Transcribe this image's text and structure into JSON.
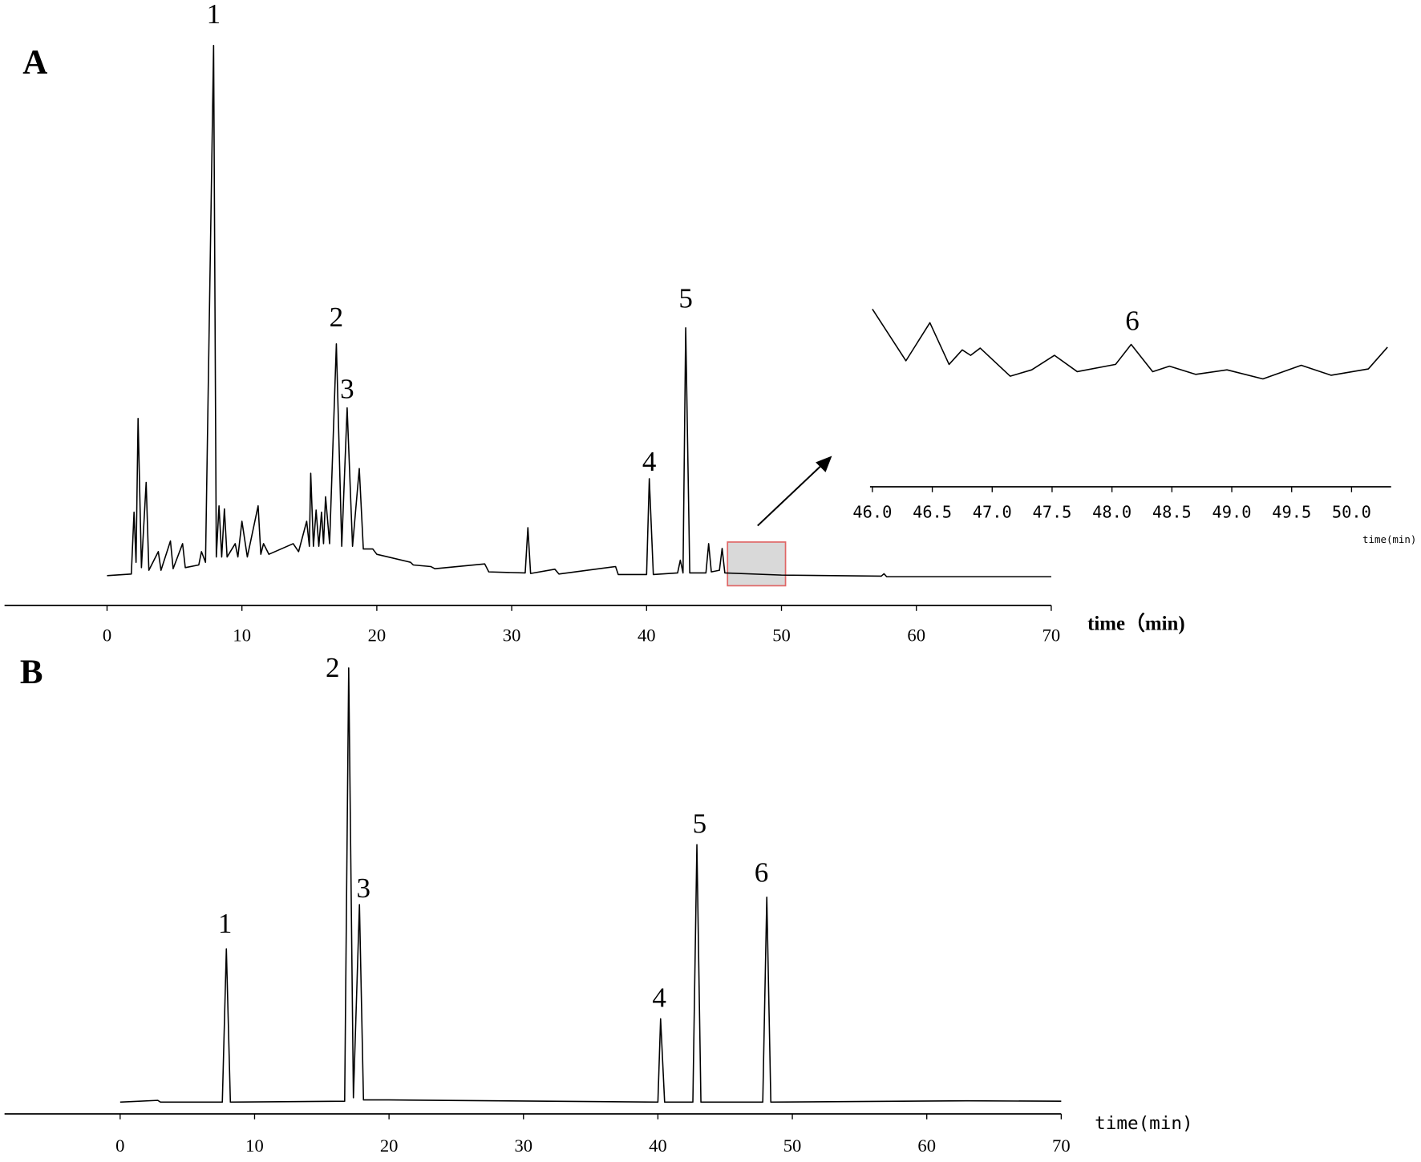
{
  "chart_data": [
    {
      "type": "line",
      "panel_label": "A",
      "xlabel": "time（min)",
      "xlim": [
        -7.6,
        70
      ],
      "ylim": [
        0,
        108
      ],
      "xticks": [
        0,
        10,
        20,
        30,
        40,
        50,
        60,
        70
      ],
      "series": [
        {
          "color": "#000000",
          "x": [
            0,
            1.8,
            2.0,
            2.15,
            2.3,
            2.55,
            2.9,
            3.1,
            3.8,
            4.0,
            4.7,
            4.9,
            5.6,
            5.8,
            6.8,
            7.0,
            7.3,
            7.9,
            8.1,
            8.3,
            8.5,
            8.7,
            8.9,
            9.5,
            9.7,
            10.0,
            10.4,
            11.2,
            11.4,
            11.6,
            12,
            13.8,
            14.2,
            14.8,
            15,
            15.1,
            15.3,
            15.5,
            15.7,
            15.9,
            16.05,
            16.2,
            16.5,
            17.0,
            17.4,
            17.8,
            18.2,
            18.7,
            19.0,
            19.7,
            20,
            22.5,
            22.7,
            24,
            24.3,
            28,
            28.3,
            31.0,
            31.2,
            31.4,
            33.2,
            33.5,
            37.7,
            37.9,
            40.0,
            40.2,
            40.5,
            42.3,
            42.5,
            42.7,
            42.9,
            43.2,
            44.4,
            44.6,
            44.8,
            45.4,
            45.6,
            45.8,
            50,
            57.4,
            57.6,
            57.8,
            70
          ],
          "values": [
            0.5,
            0.8,
            12.4,
            3,
            30,
            2,
            18,
            1.5,
            5,
            1.5,
            7,
            1.8,
            6.5,
            2,
            2.5,
            5,
            3,
            100,
            4,
            13.6,
            4,
            13,
            4,
            6.5,
            4,
            10.7,
            4,
            13.6,
            4.5,
            6.5,
            4.5,
            6.5,
            5,
            10.7,
            6,
            19.7,
            6,
            12.8,
            6,
            12.4,
            6.5,
            15.3,
            6.5,
            44,
            6,
            32,
            6,
            20.6,
            5.5,
            5.5,
            4.5,
            3,
            2.5,
            2.2,
            1.8,
            2.7,
            1.2,
            1,
            9.5,
            0.9,
            1.7,
            0.8,
            2.2,
            0.7,
            0.7,
            18.7,
            0.7,
            1,
            3.4,
            1,
            47,
            1,
            1,
            6.5,
            1.2,
            1.5,
            5.6,
            1,
            0.6,
            0.4,
            0.85,
            0.3,
            0.3
          ]
        }
      ],
      "annotations": [
        {
          "text": "1",
          "x": 7.9,
          "y": 105.4
        },
        {
          "text": "2",
          "x": 17.0,
          "y": 48.5
        },
        {
          "text": "3",
          "x": 17.8,
          "y": 35
        },
        {
          "text": "4",
          "x": 40.2,
          "y": 21.4
        },
        {
          "text": "5",
          "x": 42.9,
          "y": 52
        }
      ],
      "zoom_box": {
        "xlim": [
          46,
          50.3
        ],
        "ylim": [
          -1.4,
          6.8
        ],
        "color": "#e06666",
        "fill": "#d9d9d9"
      }
    },
    {
      "type": "line",
      "xlabel": "time(min)",
      "xlim": [
        45.98,
        50.33
      ],
      "ylim": [
        0,
        100
      ],
      "xticks": [
        {
          "value": 46,
          "label": "46.0"
        },
        {
          "value": 46.5,
          "label": "46.5"
        },
        {
          "value": 47,
          "label": "47.0"
        },
        {
          "value": 47.5,
          "label": "47.5"
        },
        {
          "value": 48,
          "label": "48.0"
        },
        {
          "value": 48.5,
          "label": "48.5"
        },
        {
          "value": 49,
          "label": "49.0"
        },
        {
          "value": 49.5,
          "label": "49.5"
        },
        {
          "value": 50,
          "label": "50.0"
        }
      ],
      "series": [
        {
          "color": "#000000",
          "x": [
            46.0,
            46.28,
            46.48,
            46.64,
            46.75,
            46.82,
            46.9,
            47.15,
            47.33,
            47.52,
            47.71,
            48.03,
            48.16,
            48.34,
            48.48,
            48.7,
            48.96,
            49.26,
            49.58,
            49.83,
            50.14,
            50.3
          ],
          "values": [
            89,
            32,
            74,
            28,
            44,
            38,
            46,
            15,
            22,
            38,
            20,
            28,
            50,
            20,
            26,
            17,
            22,
            12,
            27,
            16,
            23,
            47
          ]
        }
      ],
      "annotations": [
        {
          "text": "6",
          "x": 48.17,
          "y": 73
        }
      ]
    },
    {
      "type": "line",
      "panel_label": "B",
      "xlabel": "time(min)",
      "xlim": [
        -8.6,
        70
      ],
      "ylim": [
        0,
        105
      ],
      "xticks": [
        0,
        10,
        20,
        30,
        40,
        50,
        60,
        70
      ],
      "series": [
        {
          "color": "#000000",
          "x": [
            0,
            2.8,
            3,
            7.6,
            7.9,
            8.2,
            16.7,
            17.0,
            17.35,
            17.8,
            18.1,
            20,
            40.0,
            40.2,
            40.5,
            42.6,
            42.9,
            43.2,
            47.8,
            48.1,
            48.4,
            63,
            70
          ],
          "values": [
            0,
            0.4,
            0,
            0,
            35.3,
            0,
            0.2,
            100,
            1,
            45.5,
            0.5,
            0.5,
            0,
            19.2,
            0,
            0,
            59.3,
            0,
            0,
            47.2,
            0,
            0.3,
            0.2
          ]
        }
      ],
      "annotations": [
        {
          "text": "1",
          "x": 7.8,
          "y": 40.5
        },
        {
          "text": "2",
          "x": 15.8,
          "y": 99.4
        },
        {
          "text": "3",
          "x": 18.1,
          "y": 48.6
        },
        {
          "text": "4",
          "x": 40.1,
          "y": 23.4
        },
        {
          "text": "5",
          "x": 43.1,
          "y": 63.5
        },
        {
          "text": "6",
          "x": 47.7,
          "y": 52.2
        }
      ]
    }
  ]
}
